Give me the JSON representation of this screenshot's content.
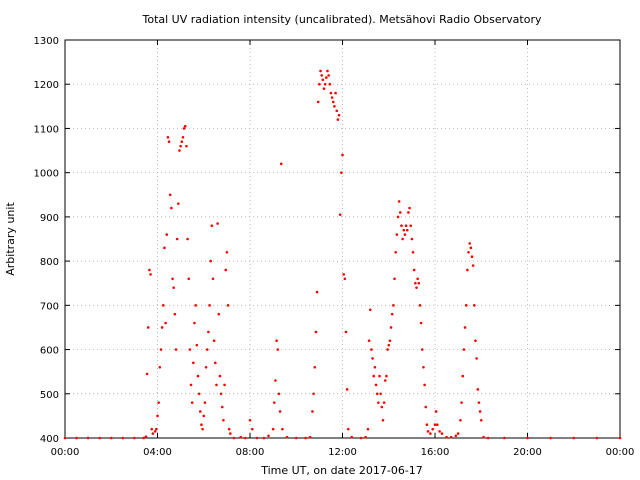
{
  "chart_data": {
    "type": "scatter",
    "title": "Total UV radiation intensity (uncalibrated). Metsähovi Radio Observatory",
    "xlabel": "Time UT, on date 2017-06-17",
    "ylabel": "Arbitrary unit",
    "xlim": [
      "00:00",
      "24:00"
    ],
    "ylim": [
      400,
      1300
    ],
    "x_ticks": [
      "00:00",
      "04:00",
      "08:00",
      "12:00",
      "16:00",
      "20:00",
      "00:00"
    ],
    "y_ticks": [
      400,
      500,
      600,
      700,
      800,
      900,
      1000,
      1100,
      1200,
      1300
    ],
    "grid": true,
    "legend": "none",
    "marker_color": "#ff0000",
    "series": [
      {
        "x_unit": "hours UT",
        "points": [
          [
            0.0,
            400
          ],
          [
            0.5,
            400
          ],
          [
            1.0,
            400
          ],
          [
            1.5,
            400
          ],
          [
            2.0,
            400
          ],
          [
            2.5,
            400
          ],
          [
            3.0,
            400
          ],
          [
            3.4,
            400
          ],
          [
            3.5,
            403
          ],
          [
            3.55,
            545
          ],
          [
            3.6,
            650
          ],
          [
            3.65,
            780
          ],
          [
            3.7,
            770
          ],
          [
            3.75,
            420
          ],
          [
            3.8,
            410
          ],
          [
            3.9,
            415
          ],
          [
            3.95,
            420
          ],
          [
            4.0,
            450
          ],
          [
            4.05,
            480
          ],
          [
            4.1,
            560
          ],
          [
            4.15,
            600
          ],
          [
            4.2,
            650
          ],
          [
            4.25,
            700
          ],
          [
            4.3,
            830
          ],
          [
            4.35,
            660
          ],
          [
            4.4,
            860
          ],
          [
            4.45,
            1080
          ],
          [
            4.5,
            1070
          ],
          [
            4.55,
            950
          ],
          [
            4.6,
            920
          ],
          [
            4.65,
            760
          ],
          [
            4.7,
            740
          ],
          [
            4.75,
            680
          ],
          [
            4.8,
            600
          ],
          [
            4.85,
            850
          ],
          [
            4.9,
            930
          ],
          [
            4.95,
            1050
          ],
          [
            5.0,
            1060
          ],
          [
            5.05,
            1070
          ],
          [
            5.1,
            1080
          ],
          [
            5.15,
            1100
          ],
          [
            5.2,
            1105
          ],
          [
            5.25,
            1060
          ],
          [
            5.3,
            850
          ],
          [
            5.35,
            760
          ],
          [
            5.4,
            600
          ],
          [
            5.45,
            520
          ],
          [
            5.5,
            480
          ],
          [
            5.55,
            570
          ],
          [
            5.6,
            660
          ],
          [
            5.65,
            700
          ],
          [
            5.7,
            610
          ],
          [
            5.75,
            540
          ],
          [
            5.8,
            500
          ],
          [
            5.85,
            460
          ],
          [
            5.9,
            430
          ],
          [
            5.95,
            420
          ],
          [
            6.0,
            450
          ],
          [
            6.05,
            480
          ],
          [
            6.1,
            560
          ],
          [
            6.15,
            600
          ],
          [
            6.2,
            640
          ],
          [
            6.25,
            700
          ],
          [
            6.3,
            800
          ],
          [
            6.35,
            880
          ],
          [
            6.4,
            760
          ],
          [
            6.45,
            620
          ],
          [
            6.5,
            570
          ],
          [
            6.55,
            520
          ],
          [
            6.6,
            885
          ],
          [
            6.65,
            680
          ],
          [
            6.7,
            540
          ],
          [
            6.75,
            500
          ],
          [
            6.8,
            470
          ],
          [
            6.85,
            440
          ],
          [
            6.9,
            520
          ],
          [
            6.95,
            780
          ],
          [
            7.0,
            820
          ],
          [
            7.05,
            700
          ],
          [
            7.1,
            420
          ],
          [
            7.15,
            410
          ],
          [
            7.3,
            400
          ],
          [
            7.6,
            402
          ],
          [
            7.8,
            400
          ],
          [
            8.0,
            440
          ],
          [
            8.1,
            420
          ],
          [
            8.3,
            400
          ],
          [
            8.6,
            400
          ],
          [
            8.8,
            405
          ],
          [
            9.0,
            420
          ],
          [
            9.05,
            480
          ],
          [
            9.1,
            530
          ],
          [
            9.15,
            620
          ],
          [
            9.2,
            600
          ],
          [
            9.25,
            500
          ],
          [
            9.3,
            460
          ],
          [
            9.35,
            1020
          ],
          [
            9.4,
            420
          ],
          [
            9.6,
            402
          ],
          [
            10.0,
            400
          ],
          [
            10.4,
            400
          ],
          [
            10.6,
            402
          ],
          [
            10.7,
            460
          ],
          [
            10.75,
            500
          ],
          [
            10.8,
            560
          ],
          [
            10.85,
            640
          ],
          [
            10.9,
            730
          ],
          [
            10.95,
            1160
          ],
          [
            11.0,
            1200
          ],
          [
            11.05,
            1230
          ],
          [
            11.1,
            1220
          ],
          [
            11.15,
            1210
          ],
          [
            11.2,
            1190
          ],
          [
            11.25,
            1200
          ],
          [
            11.3,
            1215
          ],
          [
            11.35,
            1230
          ],
          [
            11.4,
            1220
          ],
          [
            11.45,
            1200
          ],
          [
            11.5,
            1180
          ],
          [
            11.55,
            1170
          ],
          [
            11.6,
            1160
          ],
          [
            11.65,
            1150
          ],
          [
            11.7,
            1180
          ],
          [
            11.75,
            1140
          ],
          [
            11.8,
            1120
          ],
          [
            11.85,
            1130
          ],
          [
            11.9,
            905
          ],
          [
            11.95,
            1000
          ],
          [
            12.0,
            1040
          ],
          [
            12.05,
            770
          ],
          [
            12.1,
            760
          ],
          [
            12.15,
            640
          ],
          [
            12.2,
            510
          ],
          [
            12.25,
            420
          ],
          [
            12.4,
            402
          ],
          [
            12.8,
            400
          ],
          [
            13.0,
            402
          ],
          [
            13.1,
            420
          ],
          [
            13.15,
            620
          ],
          [
            13.2,
            690
          ],
          [
            13.25,
            600
          ],
          [
            13.3,
            580
          ],
          [
            13.35,
            540
          ],
          [
            13.4,
            560
          ],
          [
            13.45,
            520
          ],
          [
            13.5,
            500
          ],
          [
            13.55,
            480
          ],
          [
            13.6,
            540
          ],
          [
            13.65,
            500
          ],
          [
            13.7,
            470
          ],
          [
            13.75,
            440
          ],
          [
            13.8,
            480
          ],
          [
            13.85,
            530
          ],
          [
            13.9,
            540
          ],
          [
            13.95,
            600
          ],
          [
            14.0,
            610
          ],
          [
            14.05,
            620
          ],
          [
            14.1,
            650
          ],
          [
            14.15,
            680
          ],
          [
            14.2,
            700
          ],
          [
            14.25,
            760
          ],
          [
            14.3,
            820
          ],
          [
            14.35,
            860
          ],
          [
            14.4,
            900
          ],
          [
            14.45,
            935
          ],
          [
            14.5,
            910
          ],
          [
            14.55,
            880
          ],
          [
            14.6,
            850
          ],
          [
            14.65,
            870
          ],
          [
            14.7,
            860
          ],
          [
            14.75,
            880
          ],
          [
            14.8,
            870
          ],
          [
            14.85,
            910
          ],
          [
            14.9,
            920
          ],
          [
            14.95,
            880
          ],
          [
            15.0,
            850
          ],
          [
            15.05,
            820
          ],
          [
            15.1,
            780
          ],
          [
            15.15,
            750
          ],
          [
            15.2,
            740
          ],
          [
            15.25,
            760
          ],
          [
            15.3,
            750
          ],
          [
            15.35,
            700
          ],
          [
            15.4,
            660
          ],
          [
            15.45,
            600
          ],
          [
            15.5,
            560
          ],
          [
            15.55,
            520
          ],
          [
            15.6,
            470
          ],
          [
            15.65,
            430
          ],
          [
            15.7,
            415
          ],
          [
            15.8,
            410
          ],
          [
            15.9,
            420
          ],
          [
            16.0,
            430
          ],
          [
            16.05,
            460
          ],
          [
            16.1,
            430
          ],
          [
            16.2,
            415
          ],
          [
            16.3,
            410
          ],
          [
            16.5,
            402
          ],
          [
            16.7,
            402
          ],
          [
            16.9,
            405
          ],
          [
            17.0,
            410
          ],
          [
            17.1,
            440
          ],
          [
            17.15,
            480
          ],
          [
            17.2,
            540
          ],
          [
            17.25,
            600
          ],
          [
            17.3,
            650
          ],
          [
            17.35,
            700
          ],
          [
            17.4,
            780
          ],
          [
            17.45,
            820
          ],
          [
            17.5,
            840
          ],
          [
            17.55,
            830
          ],
          [
            17.6,
            810
          ],
          [
            17.65,
            790
          ],
          [
            17.7,
            700
          ],
          [
            17.75,
            620
          ],
          [
            17.8,
            580
          ],
          [
            17.85,
            510
          ],
          [
            17.9,
            480
          ],
          [
            17.95,
            460
          ],
          [
            18.0,
            440
          ],
          [
            18.1,
            402
          ],
          [
            18.3,
            400
          ],
          [
            19.0,
            400
          ],
          [
            20.0,
            400
          ],
          [
            21.0,
            400
          ],
          [
            22.0,
            400
          ],
          [
            23.0,
            400
          ],
          [
            24.0,
            400
          ]
        ]
      }
    ]
  }
}
